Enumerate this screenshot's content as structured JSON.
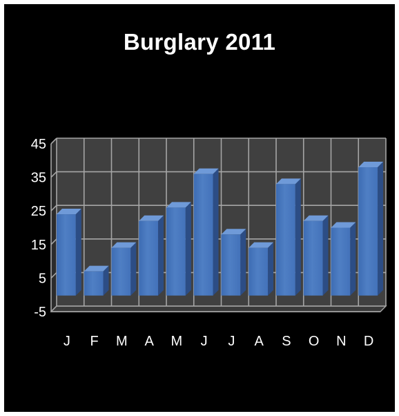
{
  "colors": {
    "background": "#000000",
    "plot_wall": "#404040",
    "grid": "#a6a6a6",
    "bar_front": "#4f7fc4",
    "text": "#ffffff"
  },
  "chart_data": {
    "type": "bar",
    "title": "Burglary 2011",
    "categories": [
      "J",
      "F",
      "M",
      "A",
      "M",
      "J",
      "J",
      "A",
      "S",
      "O",
      "N",
      "D"
    ],
    "values": [
      24,
      7,
      14,
      22,
      26,
      36,
      18,
      14,
      33,
      22,
      20,
      38
    ],
    "y_ticks": [
      "-5",
      "5",
      "15",
      "25",
      "35",
      "45"
    ],
    "ylim": [
      -5,
      45
    ],
    "grid": true,
    "style": "3d-clustered-column",
    "legend": "none"
  }
}
